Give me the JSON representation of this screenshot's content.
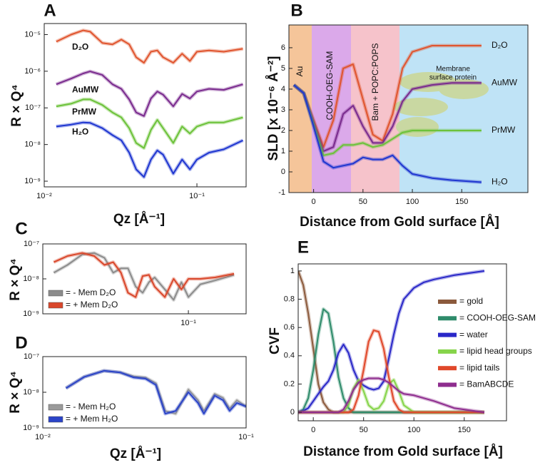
{
  "chart_data": [
    {
      "type": "line",
      "panel_label": "A",
      "xscale": "log",
      "yscale": "log",
      "x_label": "Qz [Å⁻¹]",
      "y_label": "R × Q⁴",
      "legend": "inline",
      "x": [
        0.012,
        0.015,
        0.018,
        0.02,
        0.024,
        0.028,
        0.032,
        0.036,
        0.04,
        0.045,
        0.05,
        0.055,
        0.06,
        0.07,
        0.08,
        0.09,
        0.1,
        0.12,
        0.15,
        0.2
      ],
      "xlim": [
        0.01,
        0.21
      ],
      "ylim": [
        7e-10,
        2e-05
      ],
      "xticks": [
        {
          "value": 0.01,
          "label": "10⁻²"
        },
        {
          "value": 0.1,
          "label": "10⁻¹"
        }
      ],
      "yticks": [
        {
          "value": 1e-09,
          "label": "10⁻⁹"
        },
        {
          "value": 1e-08,
          "label": "10⁻⁸"
        },
        {
          "value": 1e-07,
          "label": "10⁻⁷"
        },
        {
          "value": 1e-06,
          "label": "10⁻⁶"
        },
        {
          "value": 1e-05,
          "label": "10⁻⁵"
        }
      ],
      "series": [
        {
          "name": "D₂O",
          "color": "#e0552f",
          "values": [
            6.4e-06,
            1e-05,
            1.3e-05,
            1.2e-05,
            5.9e-06,
            5.4e-06,
            7.3e-06,
            5.4e-06,
            2.4e-06,
            1.7e-06,
            3.4e-06,
            3.7e-06,
            2.4e-06,
            1.7e-06,
            3e-06,
            1.9e-06,
            3.4e-06,
            3.7e-06,
            3.4e-06,
            4.1e-06
          ]
        },
        {
          "name": "AuMW",
          "color": "#7a2b8e",
          "values": [
            4.4e-07,
            6.3e-07,
            8.7e-07,
            9.9e-07,
            7.9e-07,
            4.4e-07,
            3.3e-07,
            1.7e-07,
            7.5e-08,
            6e-08,
            1.8e-07,
            2.8e-07,
            2.3e-07,
            1.1e-07,
            2.4e-07,
            1.8e-07,
            2.8e-07,
            3.3e-07,
            3.1e-07,
            4.4e-07
          ]
        },
        {
          "name": "PrMW",
          "color": "#6cc23a",
          "values": [
            1.1e-07,
            1.3e-07,
            1.7e-07,
            1.7e-07,
            1.2e-07,
            7.5e-08,
            5.5e-08,
            2.8e-08,
            1.1e-08,
            8e-09,
            2.5e-08,
            4.7e-08,
            2.8e-08,
            1.1e-08,
            3.1e-08,
            2e-08,
            3.1e-08,
            4e-08,
            4e-08,
            5.5e-08
          ]
        },
        {
          "name": "H₂O",
          "color": "#1f36d0",
          "values": [
            3.1e-08,
            3.5e-08,
            4e-08,
            3.9e-08,
            2.8e-08,
            1.8e-08,
            1.3e-08,
            6e-09,
            2.1e-09,
            1.3e-09,
            3.9e-09,
            6.9e-09,
            5.3e-09,
            1.6e-09,
            3.9e-09,
            2.1e-09,
            3.9e-09,
            6e-09,
            7.4e-09,
            1.3e-08
          ]
        }
      ]
    },
    {
      "type": "line",
      "panel_label": "B",
      "x_label": "Distance from Gold surface [Å]",
      "y_label": "SLD [x 10⁻⁶ Å⁻²]",
      "legend": "line-end",
      "annotations": [
        "Au",
        "COOH-OEG-SAM",
        "Bam + POPC:POPS",
        "Membrane",
        "surface protein"
      ],
      "x": [
        -20,
        -10,
        0,
        10,
        20,
        30,
        40,
        50,
        60,
        70,
        80,
        90,
        100,
        120,
        140,
        170
      ],
      "xlim": [
        -25,
        217
      ],
      "ylim": [
        -1,
        7.1
      ],
      "xticks": [
        0,
        50,
        100,
        150
      ],
      "yticks": [
        -1,
        0,
        1,
        2,
        3,
        4,
        5,
        6
      ],
      "series": [
        {
          "name": "D₂O",
          "color": "#e0552f",
          "values": [
            4.2,
            3.8,
            2.5,
            1.2,
            2.5,
            5.0,
            5.2,
            3.5,
            1.8,
            1.5,
            2.8,
            5.0,
            5.8,
            6.1,
            6.1,
            6.1
          ]
        },
        {
          "name": "AuMW",
          "color": "#7a2b8e",
          "values": [
            4.2,
            3.8,
            2.4,
            1.0,
            1.2,
            2.8,
            3.2,
            2.2,
            1.4,
            1.4,
            2.2,
            3.4,
            4.0,
            4.2,
            4.3,
            4.3
          ]
        },
        {
          "name": "PrMW",
          "color": "#6cc23a",
          "values": [
            4.2,
            3.8,
            2.3,
            0.8,
            0.9,
            1.3,
            1.3,
            1.4,
            1.2,
            1.3,
            1.6,
            1.9,
            2.0,
            2.0,
            2.0,
            2.0
          ]
        },
        {
          "name": "H₂O",
          "color": "#1f36d0",
          "values": [
            4.2,
            3.8,
            2.2,
            0.5,
            0.2,
            0.3,
            0.4,
            0.7,
            0.6,
            0.6,
            0.8,
            0.3,
            -0.1,
            -0.3,
            -0.4,
            -0.5
          ]
        }
      ]
    },
    {
      "type": "line",
      "panel_label": "C",
      "xscale": "log",
      "yscale": "log",
      "y_label": "R × Q⁴",
      "legend": "lower left",
      "x": [
        0.013,
        0.016,
        0.02,
        0.024,
        0.028,
        0.032,
        0.036,
        0.04,
        0.045,
        0.05,
        0.055,
        0.06,
        0.07,
        0.08,
        0.09,
        0.1,
        0.12,
        0.15,
        0.2
      ],
      "xlim": [
        0.011,
        0.24
      ],
      "ylim": [
        1e-09,
        1e-07
      ],
      "xticks": [
        {
          "value": 0.1,
          "label": "10⁻¹"
        }
      ],
      "yticks": [
        {
          "value": 1e-09,
          "label": "10⁻⁹"
        },
        {
          "value": 1e-08,
          "label": "10⁻⁸"
        },
        {
          "value": 1e-07,
          "label": "10⁻⁷"
        }
      ],
      "series": [
        {
          "name": "= - Mem D₂O",
          "color": "#8c8c8c",
          "values": [
            1.5e-08,
            2.5e-08,
            5e-08,
            5.5e-08,
            4e-08,
            1.5e-08,
            2e-08,
            2e-08,
            6e-09,
            4e-09,
            8e-09,
            1.1e-08,
            5e-09,
            2.5e-09,
            8e-09,
            3e-09,
            7e-09,
            9e-09,
            1.3e-08
          ]
        },
        {
          "name": "= + Mem D₂O",
          "color": "#d9472b",
          "values": [
            3e-08,
            4.5e-08,
            5.5e-08,
            4.5e-08,
            2.5e-08,
            3e-08,
            1.5e-08,
            4e-09,
            3e-09,
            1.2e-08,
            1.3e-08,
            6e-09,
            3e-09,
            1e-08,
            5e-09,
            1e-08,
            1e-08,
            1.1e-08,
            1.4e-08
          ]
        }
      ]
    },
    {
      "type": "line",
      "panel_label": "D",
      "xscale": "log",
      "yscale": "log",
      "x_label": "Qz [Å⁻¹]",
      "y_label": "R × Q⁴",
      "legend": "lower left",
      "x": [
        0.013,
        0.016,
        0.02,
        0.024,
        0.028,
        0.032,
        0.036,
        0.04,
        0.045,
        0.052,
        0.058,
        0.062,
        0.07,
        0.077,
        0.083,
        0.09,
        0.1
      ],
      "xlim": [
        0.01,
        0.1
      ],
      "ylim": [
        1e-09,
        1e-07
      ],
      "xticks": [
        {
          "value": 0.01,
          "label": "10⁻²"
        },
        {
          "value": 0.1,
          "label": "10⁻¹"
        }
      ],
      "yticks": [
        {
          "value": 1e-09,
          "label": "10⁻⁹"
        },
        {
          "value": 1e-08,
          "label": "10⁻⁸"
        },
        {
          "value": 1e-07,
          "label": "10⁻⁷"
        }
      ],
      "series": [
        {
          "name": "= - Mem H₂O",
          "color": "#9a9a9a",
          "values": [
            1.3e-08,
            2.7e-08,
            4e-08,
            3.6e-08,
            2.8e-08,
            2.6e-08,
            1.8e-08,
            3e-09,
            2.5e-09,
            1.2e-08,
            6e-09,
            3e-09,
            9e-09,
            7e-09,
            3.5e-09,
            6e-09,
            4e-09
          ]
        },
        {
          "name": "= + Mem H₂O",
          "color": "#2b44c8",
          "values": [
            1.3e-08,
            2.7e-08,
            4e-08,
            3.6e-08,
            2.6e-08,
            2.4e-08,
            1.6e-08,
            2.5e-09,
            3e-09,
            1e-08,
            5e-09,
            2.5e-09,
            8e-09,
            6e-09,
            3e-09,
            5e-09,
            4e-09
          ]
        }
      ]
    },
    {
      "type": "line",
      "panel_label": "E",
      "x_label": "Distance from Gold surface [Å]",
      "y_label": "CVF",
      "legend": "right",
      "x": [
        -15,
        -10,
        -5,
        0,
        5,
        10,
        15,
        20,
        25,
        30,
        35,
        40,
        45,
        50,
        55,
        60,
        65,
        70,
        75,
        80,
        85,
        90,
        100,
        110,
        120,
        140,
        170
      ],
      "xlim": [
        -15,
        192
      ],
      "ylim": [
        -0.06,
        1.05
      ],
      "xticks": [
        0,
        50,
        100,
        150
      ],
      "yticks": [
        0,
        0.2,
        0.4,
        0.6,
        0.8,
        1
      ],
      "series": [
        {
          "name": "= gold",
          "color": "#8b5a3c",
          "values": [
            1.0,
            0.9,
            0.7,
            0.45,
            0.2,
            0.07,
            0.02,
            0,
            0,
            0,
            0,
            0,
            0,
            0,
            0,
            0,
            0,
            0,
            0,
            0,
            0,
            0,
            0,
            0,
            0,
            0,
            0
          ]
        },
        {
          "name": "= COOH-OEG-SAM",
          "color": "#2e8b6a",
          "values": [
            0,
            0.02,
            0.1,
            0.3,
            0.55,
            0.73,
            0.7,
            0.5,
            0.25,
            0.1,
            0.03,
            0,
            0,
            0,
            0,
            0,
            0,
            0,
            0,
            0,
            0,
            0,
            0,
            0,
            0,
            0,
            0
          ]
        },
        {
          "name": "= water",
          "color": "#2a28c8",
          "values": [
            0,
            0.01,
            0.03,
            0.08,
            0.13,
            0.18,
            0.22,
            0.3,
            0.42,
            0.48,
            0.42,
            0.3,
            0.22,
            0.19,
            0.17,
            0.16,
            0.17,
            0.22,
            0.38,
            0.55,
            0.7,
            0.8,
            0.88,
            0.92,
            0.94,
            0.97,
            1.0
          ]
        },
        {
          "name": "= lipid head groups",
          "color": "#86d44a",
          "values": [
            0,
            0,
            0,
            0,
            0,
            0,
            0,
            0,
            0,
            0,
            0.05,
            0.17,
            0.23,
            0.15,
            0.05,
            0.02,
            0.03,
            0.08,
            0.2,
            0.23,
            0.15,
            0.05,
            0,
            0,
            0,
            0,
            0
          ]
        },
        {
          "name": "= lipid tails",
          "color": "#e0482a",
          "values": [
            0,
            0,
            0,
            0,
            0,
            0,
            0,
            0,
            0,
            0,
            0,
            0.02,
            0.12,
            0.3,
            0.5,
            0.58,
            0.57,
            0.45,
            0.25,
            0.08,
            0.02,
            0,
            0,
            0,
            0,
            0,
            0
          ]
        },
        {
          "name": "= BamABCDE",
          "color": "#8e2d8e",
          "values": [
            0,
            0,
            0,
            0,
            0,
            0,
            0,
            0,
            0,
            0.02,
            0.08,
            0.16,
            0.21,
            0.23,
            0.24,
            0.24,
            0.24,
            0.23,
            0.21,
            0.18,
            0.15,
            0.13,
            0.12,
            0.1,
            0.08,
            0.03,
            0
          ]
        }
      ]
    }
  ]
}
